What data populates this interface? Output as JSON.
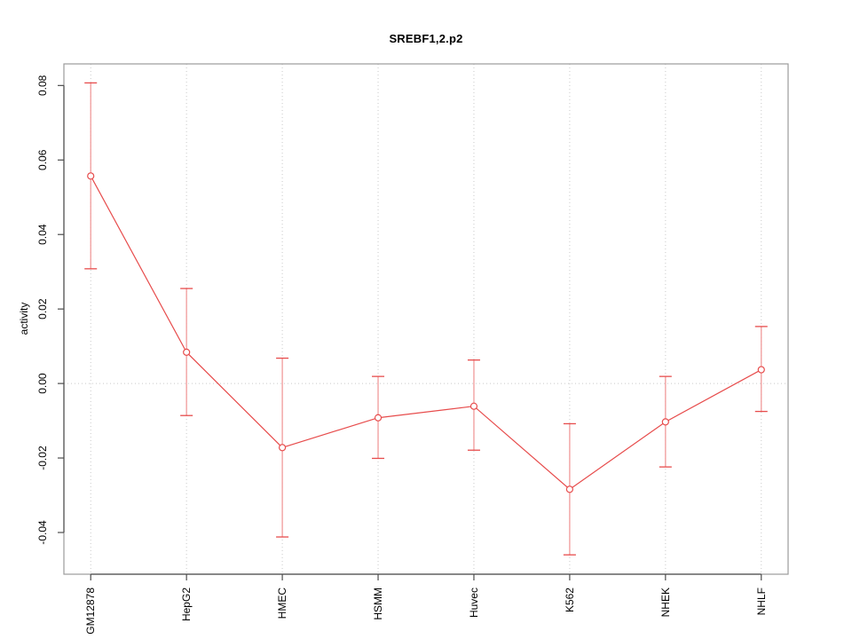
{
  "chart_data": {
    "type": "line",
    "title": "SREBF1,2.p2",
    "xlabel": "",
    "ylabel": "activity",
    "categories": [
      "GM12878",
      "HepG2",
      "HMEC",
      "HSMM",
      "Huvec",
      "K562",
      "NHEK",
      "NHLF"
    ],
    "series": [
      {
        "name": "SREBF1,2.p2 activity",
        "values": [
          0.0557,
          0.0084,
          -0.0172,
          -0.0092,
          -0.0061,
          -0.0284,
          -0.0103,
          0.0037
        ],
        "error_high": [
          0.0807,
          0.0255,
          0.0068,
          0.0019,
          0.0063,
          -0.0108,
          0.0019,
          0.0153
        ],
        "error_low": [
          0.0308,
          -0.0086,
          -0.0412,
          -0.0201,
          -0.0179,
          -0.046,
          -0.0224,
          -0.0075
        ]
      }
    ],
    "yticks": [
      0.08,
      0.06,
      0.04,
      0.02,
      0.0,
      -0.02,
      -0.04
    ],
    "ytick_labels": [
      "0.08",
      "0.06",
      "0.04",
      "0.02",
      "0.00",
      "-0.02",
      "-0.04"
    ],
    "ylim": [
      -0.0512,
      0.0858
    ],
    "xlim": [
      0.72,
      8.28
    ],
    "grid": {
      "vertical_dotted_per_category": true,
      "horizontal_dotted_at_zero": true
    },
    "legend": null,
    "marker": "open-circle",
    "colors": {
      "series": "#e74c4c",
      "error_stem": "#f19b9b",
      "error_cap": "#e74c4c",
      "grid": "#c9c9c9",
      "box": "#9b9b9b",
      "axis": "#4d4d4d",
      "text": "#000000",
      "background": "#ffffff"
    }
  }
}
